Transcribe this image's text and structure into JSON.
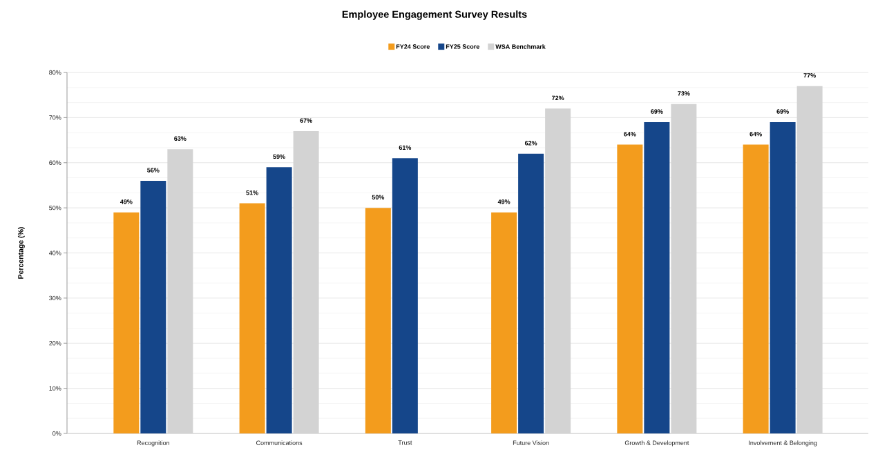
{
  "chart_data": {
    "type": "bar",
    "title": "Employee Engagement Survey Results",
    "ylabel": "Percentage (%)",
    "categories": [
      "Recognition",
      "Communications",
      "Trust",
      "Future Vision",
      "Growth & Development",
      "Involvement & Belonging"
    ],
    "series": [
      {
        "name": "FY24 Score",
        "color": "#f39c1d",
        "values": [
          49,
          51,
          50,
          49,
          64,
          64
        ],
        "value_labels": [
          "49%",
          "51%",
          "50%",
          "49%",
          "64%",
          "64%"
        ]
      },
      {
        "name": "FY25 Score",
        "color": "#15468a",
        "values": [
          56,
          59,
          61,
          62,
          69,
          69
        ],
        "value_labels": [
          "56%",
          "59%",
          "61%",
          "62%",
          "69%",
          "69%"
        ]
      },
      {
        "name": "WSA Benchmark",
        "color": "#d3d3d3",
        "values": [
          63,
          67,
          null,
          72,
          73,
          77
        ],
        "value_labels": [
          "63%",
          "67%",
          null,
          "72%",
          "73%",
          "77%"
        ]
      }
    ],
    "ylim": [
      0,
      80
    ],
    "yticks": [
      {
        "value": 0,
        "label": "0%"
      },
      {
        "value": 10,
        "label": "10%"
      },
      {
        "value": 20,
        "label": "20%"
      },
      {
        "value": 30,
        "label": "30%"
      },
      {
        "value": 40,
        "label": "40%"
      },
      {
        "value": 50,
        "label": "50%"
      },
      {
        "value": 60,
        "label": "60%"
      },
      {
        "value": 70,
        "label": "70%"
      },
      {
        "value": 80,
        "label": "80%"
      }
    ],
    "grid": "y",
    "legend": "top"
  }
}
